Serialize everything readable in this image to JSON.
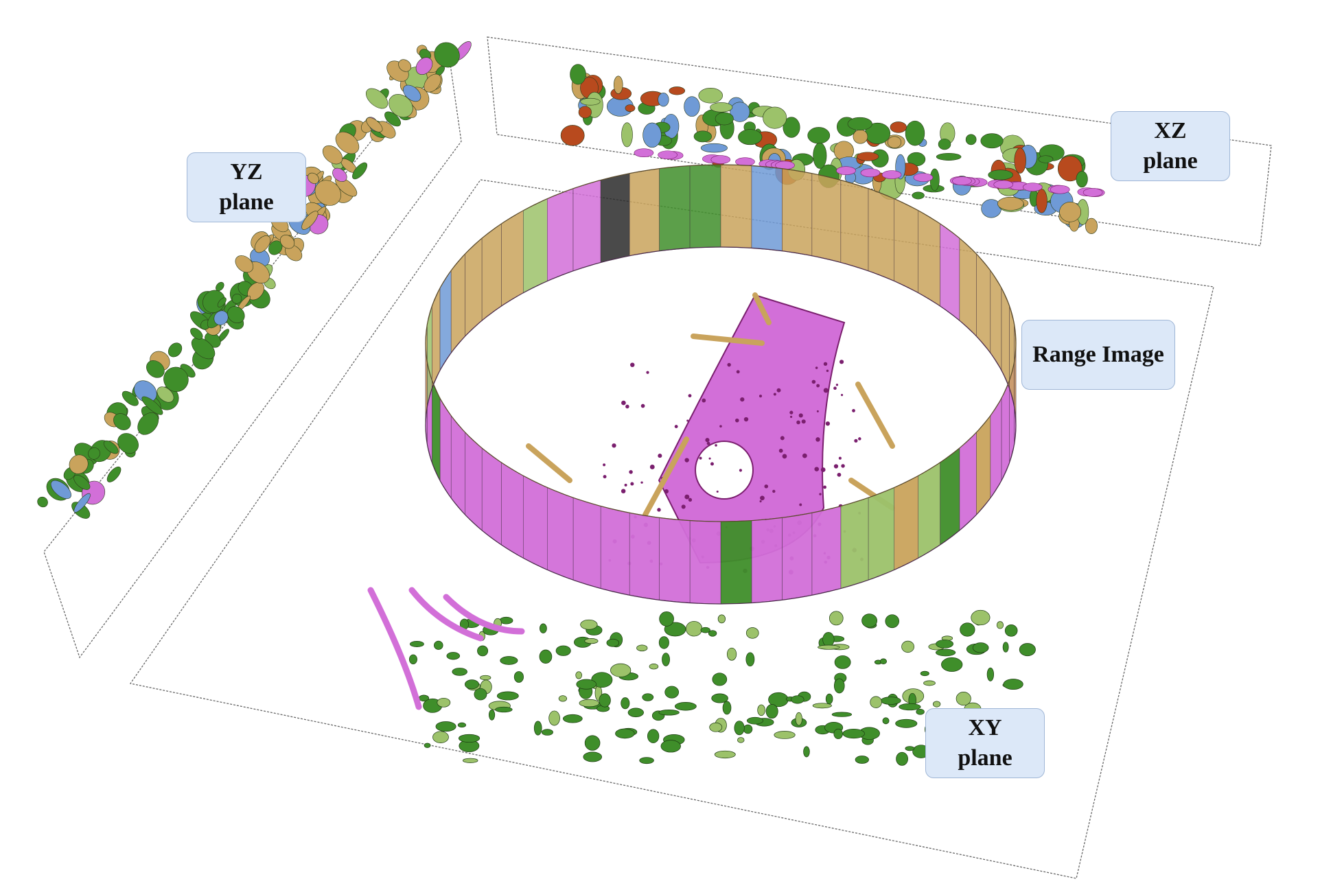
{
  "labels": {
    "yz_line1": "YZ",
    "yz_line2": "plane",
    "xz_line1": "XZ",
    "xz_line2": "plane",
    "range": "Range Image",
    "xy_line1": "XY",
    "xy_line2": "plane"
  },
  "colors": {
    "vegetation": "#3f8e2a",
    "terrain": "#9cc26a",
    "building": "#c9a35c",
    "road": "#c873c8",
    "road_dark": "#7a1f6e",
    "sidewalk": "#d26fd8",
    "car": "#6f9ad6",
    "trunk": "#b84a1e",
    "unlabeled": "#2a2a2a",
    "plane_border": "#555555"
  }
}
